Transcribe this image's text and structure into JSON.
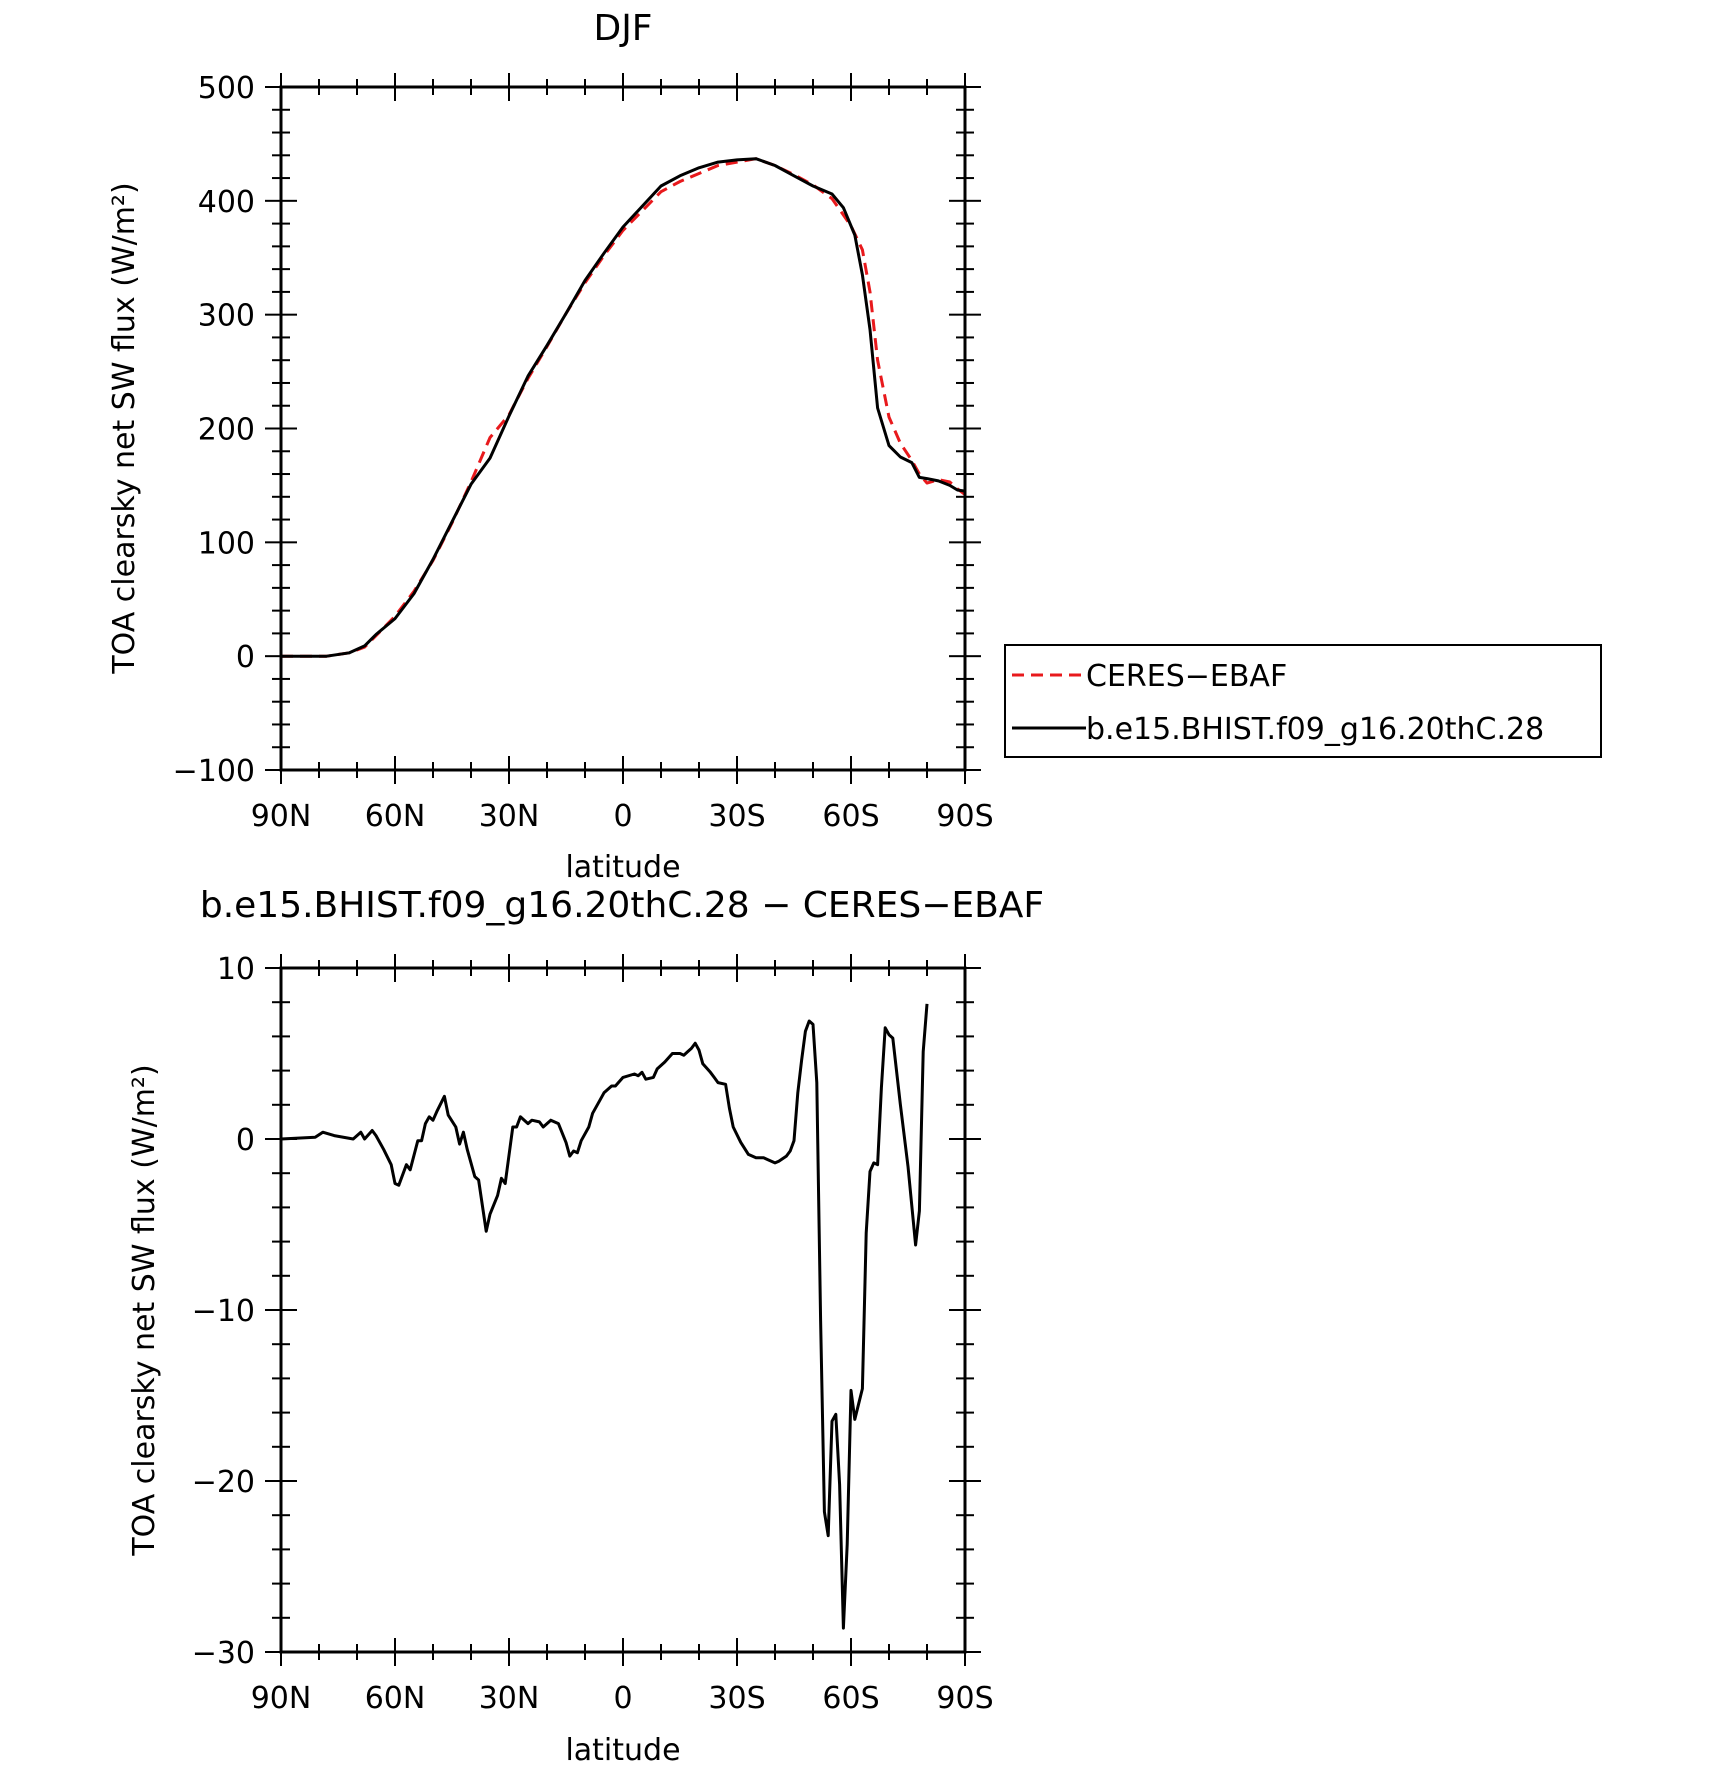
{
  "chart_data": [
    {
      "type": "line",
      "title": "DJF",
      "xlabel": "latitude",
      "ylabel": "TOA clearsky net SW flux (W/m²)",
      "x_tick_labels": [
        "90N",
        "60N",
        "30N",
        "0",
        "30S",
        "60S",
        "90S"
      ],
      "xlim": [
        90,
        -90
      ],
      "ylim": [
        -100,
        500
      ],
      "y_ticks": [
        -100,
        0,
        100,
        200,
        300,
        400,
        500
      ],
      "y_tick_labels": [
        "−100",
        "0",
        "100",
        "200",
        "300",
        "400",
        "500"
      ],
      "legend": {
        "position": "right",
        "entries": [
          "CERES−EBAF",
          "b.e15.BHIST.f09_g16.20thC.28"
        ]
      },
      "series": [
        {
          "name": "CERES−EBAF",
          "color": "#e8191c",
          "dash": "dashed",
          "points": [
            [
              90,
              0
            ],
            [
              84,
              0
            ],
            [
              78,
              0
            ],
            [
              72,
              3
            ],
            [
              68,
              8
            ],
            [
              65,
              18
            ],
            [
              60,
              35
            ],
            [
              55,
              57
            ],
            [
              50,
              84
            ],
            [
              45,
              117
            ],
            [
              40,
              153
            ],
            [
              35,
              192
            ],
            [
              30,
              212
            ],
            [
              25,
              244
            ],
            [
              20,
              272
            ],
            [
              15,
              301
            ],
            [
              10,
              328
            ],
            [
              5,
              352
            ],
            [
              0,
              374
            ],
            [
              -5,
              391
            ],
            [
              -10,
              408
            ],
            [
              -15,
              417
            ],
            [
              -20,
              424
            ],
            [
              -25,
              431
            ],
            [
              -30,
              434
            ],
            [
              -35,
              437
            ],
            [
              -40,
              431
            ],
            [
              -45,
              423
            ],
            [
              -50,
              414
            ],
            [
              -55,
              402
            ],
            [
              -60,
              378
            ],
            [
              -63,
              357
            ],
            [
              -65,
              320
            ],
            [
              -67,
              260
            ],
            [
              -70,
              210
            ],
            [
              -73,
              187
            ],
            [
              -76,
              172
            ],
            [
              -78,
              160
            ],
            [
              -80,
              152
            ],
            [
              -83,
              155
            ],
            [
              -86,
              153
            ],
            [
              -88,
              147
            ],
            [
              -90,
              142
            ]
          ]
        },
        {
          "name": "b.e15.BHIST.f09_g16.20thC.28",
          "color": "#000000",
          "dash": "solid",
          "points": [
            [
              90,
              0
            ],
            [
              84,
              0
            ],
            [
              78,
              0
            ],
            [
              72,
              3
            ],
            [
              68,
              9
            ],
            [
              65,
              19
            ],
            [
              60,
              33
            ],
            [
              55,
              55
            ],
            [
              50,
              85
            ],
            [
              45,
              118
            ],
            [
              40,
              151
            ],
            [
              35,
              174
            ],
            [
              30,
              211
            ],
            [
              25,
              246
            ],
            [
              20,
              273
            ],
            [
              15,
              301
            ],
            [
              10,
              330
            ],
            [
              5,
              354
            ],
            [
              0,
              377
            ],
            [
              -5,
              395
            ],
            [
              -10,
              413
            ],
            [
              -15,
              422
            ],
            [
              -20,
              429
            ],
            [
              -25,
              434
            ],
            [
              -30,
              436
            ],
            [
              -35,
              437
            ],
            [
              -40,
              431
            ],
            [
              -45,
              422
            ],
            [
              -50,
              413
            ],
            [
              -55,
              406
            ],
            [
              -58,
              394
            ],
            [
              -61,
              370
            ],
            [
              -63,
              335
            ],
            [
              -65,
              287
            ],
            [
              -67,
              218
            ],
            [
              -70,
              185
            ],
            [
              -73,
              175
            ],
            [
              -76,
              170
            ],
            [
              -78,
              157
            ],
            [
              -80,
              156
            ],
            [
              -83,
              154
            ],
            [
              -86,
              150
            ],
            [
              -88,
              146
            ],
            [
              -90,
              145
            ]
          ]
        }
      ]
    },
    {
      "type": "line",
      "title": "b.e15.BHIST.f09_g16.20thC.28 − CERES−EBAF",
      "xlabel": "latitude",
      "ylabel": "TOA clearsky net SW flux (W/m²)",
      "x_tick_labels": [
        "90N",
        "60N",
        "30N",
        "0",
        "30S",
        "60S",
        "90S"
      ],
      "xlim": [
        90,
        -90
      ],
      "ylim": [
        -30,
        10
      ],
      "y_ticks": [
        -30,
        -20,
        -10,
        0,
        10
      ],
      "y_tick_labels": [
        "−30",
        "−20",
        "−10",
        "0",
        "10"
      ],
      "series": [
        {
          "color": "#000000",
          "dash": "solid",
          "points": [
            [
              90,
              0
            ],
            [
              81,
              0.1
            ],
            [
              79,
              0.4
            ],
            [
              76,
              0.2
            ],
            [
              71,
              0
            ],
            [
              69,
              0.4
            ],
            [
              68,
              0
            ],
            [
              66,
              0.5
            ],
            [
              65,
              0.2
            ],
            [
              63,
              -0.6
            ],
            [
              61,
              -1.5
            ],
            [
              60,
              -2.6
            ],
            [
              59,
              -2.7
            ],
            [
              57,
              -1.5
            ],
            [
              56,
              -1.8
            ],
            [
              54,
              -0.1
            ],
            [
              53,
              -0.1
            ],
            [
              52,
              0.9
            ],
            [
              51,
              1.3
            ],
            [
              50,
              1.1
            ],
            [
              49,
              1.6
            ],
            [
              47,
              2.5
            ],
            [
              46,
              1.4
            ],
            [
              44,
              0.7
            ],
            [
              43,
              -0.3
            ],
            [
              42,
              0.4
            ],
            [
              41,
              -0.6
            ],
            [
              39,
              -2.2
            ],
            [
              38,
              -2.4
            ],
            [
              36,
              -5.4
            ],
            [
              35,
              -4.4
            ],
            [
              33,
              -3.3
            ],
            [
              32,
              -2.3
            ],
            [
              31,
              -2.6
            ],
            [
              29,
              0.7
            ],
            [
              28,
              0.7
            ],
            [
              27,
              1.3
            ],
            [
              25,
              0.9
            ],
            [
              24,
              1.1
            ],
            [
              22,
              1.0
            ],
            [
              21,
              0.7
            ],
            [
              19,
              1.1
            ],
            [
              17,
              0.9
            ],
            [
              15,
              -0.2
            ],
            [
              14,
              -1.0
            ],
            [
              13,
              -0.7
            ],
            [
              12,
              -0.8
            ],
            [
              11,
              -0.1
            ],
            [
              9,
              0.7
            ],
            [
              8,
              1.5
            ],
            [
              6,
              2.3
            ],
            [
              5,
              2.7
            ],
            [
              3,
              3.1
            ],
            [
              2,
              3.1
            ],
            [
              0,
              3.6
            ],
            [
              -3,
              3.8
            ],
            [
              -4,
              3.7
            ],
            [
              -5,
              3.9
            ],
            [
              -6,
              3.5
            ],
            [
              -8,
              3.6
            ],
            [
              -9,
              4.1
            ],
            [
              -11,
              4.5
            ],
            [
              -13,
              5.0
            ],
            [
              -15,
              5.0
            ],
            [
              -16,
              4.9
            ],
            [
              -17,
              5.1
            ],
            [
              -18,
              5.3
            ],
            [
              -19,
              5.6
            ],
            [
              -20,
              5.2
            ],
            [
              -21,
              4.4
            ],
            [
              -23,
              3.9
            ],
            [
              -24,
              3.6
            ],
            [
              -25,
              3.3
            ],
            [
              -27,
              3.2
            ],
            [
              -28,
              1.8
            ],
            [
              -29,
              0.7
            ],
            [
              -31,
              -0.2
            ],
            [
              -33,
              -0.9
            ],
            [
              -35,
              -1.1
            ],
            [
              -37,
              -1.1
            ],
            [
              -38,
              -1.2
            ],
            [
              -40,
              -1.4
            ],
            [
              -41,
              -1.3
            ],
            [
              -43,
              -1.0
            ],
            [
              -44,
              -0.7
            ],
            [
              -45,
              -0.1
            ],
            [
              -46,
              2.7
            ],
            [
              -47,
              4.6
            ],
            [
              -48,
              6.3
            ],
            [
              -49,
              6.9
            ],
            [
              -50,
              6.7
            ],
            [
              -51,
              3.3
            ],
            [
              -52,
              -10.6
            ],
            [
              -53,
              -21.8
            ],
            [
              -54,
              -23.2
            ],
            [
              -55,
              -16.5
            ],
            [
              -56,
              -16.1
            ],
            [
              -57,
              -20.2
            ],
            [
              -58,
              -28.6
            ],
            [
              -59,
              -23.7
            ],
            [
              -60,
              -14.7
            ],
            [
              -61,
              -16.4
            ],
            [
              -62,
              -15.5
            ],
            [
              -63,
              -14.6
            ],
            [
              -64,
              -5.5
            ],
            [
              -65,
              -1.9
            ],
            [
              -66,
              -1.4
            ],
            [
              -67,
              -1.5
            ],
            [
              -68,
              3.0
            ],
            [
              -69,
              6.5
            ],
            [
              -70,
              6.1
            ],
            [
              -71,
              5.9
            ],
            [
              -73,
              2.0
            ],
            [
              -75,
              -1.6
            ],
            [
              -77,
              -6.2
            ],
            [
              -78,
              -4.2
            ],
            [
              -79,
              5.1
            ],
            [
              -80,
              7.9
            ]
          ]
        }
      ]
    }
  ]
}
